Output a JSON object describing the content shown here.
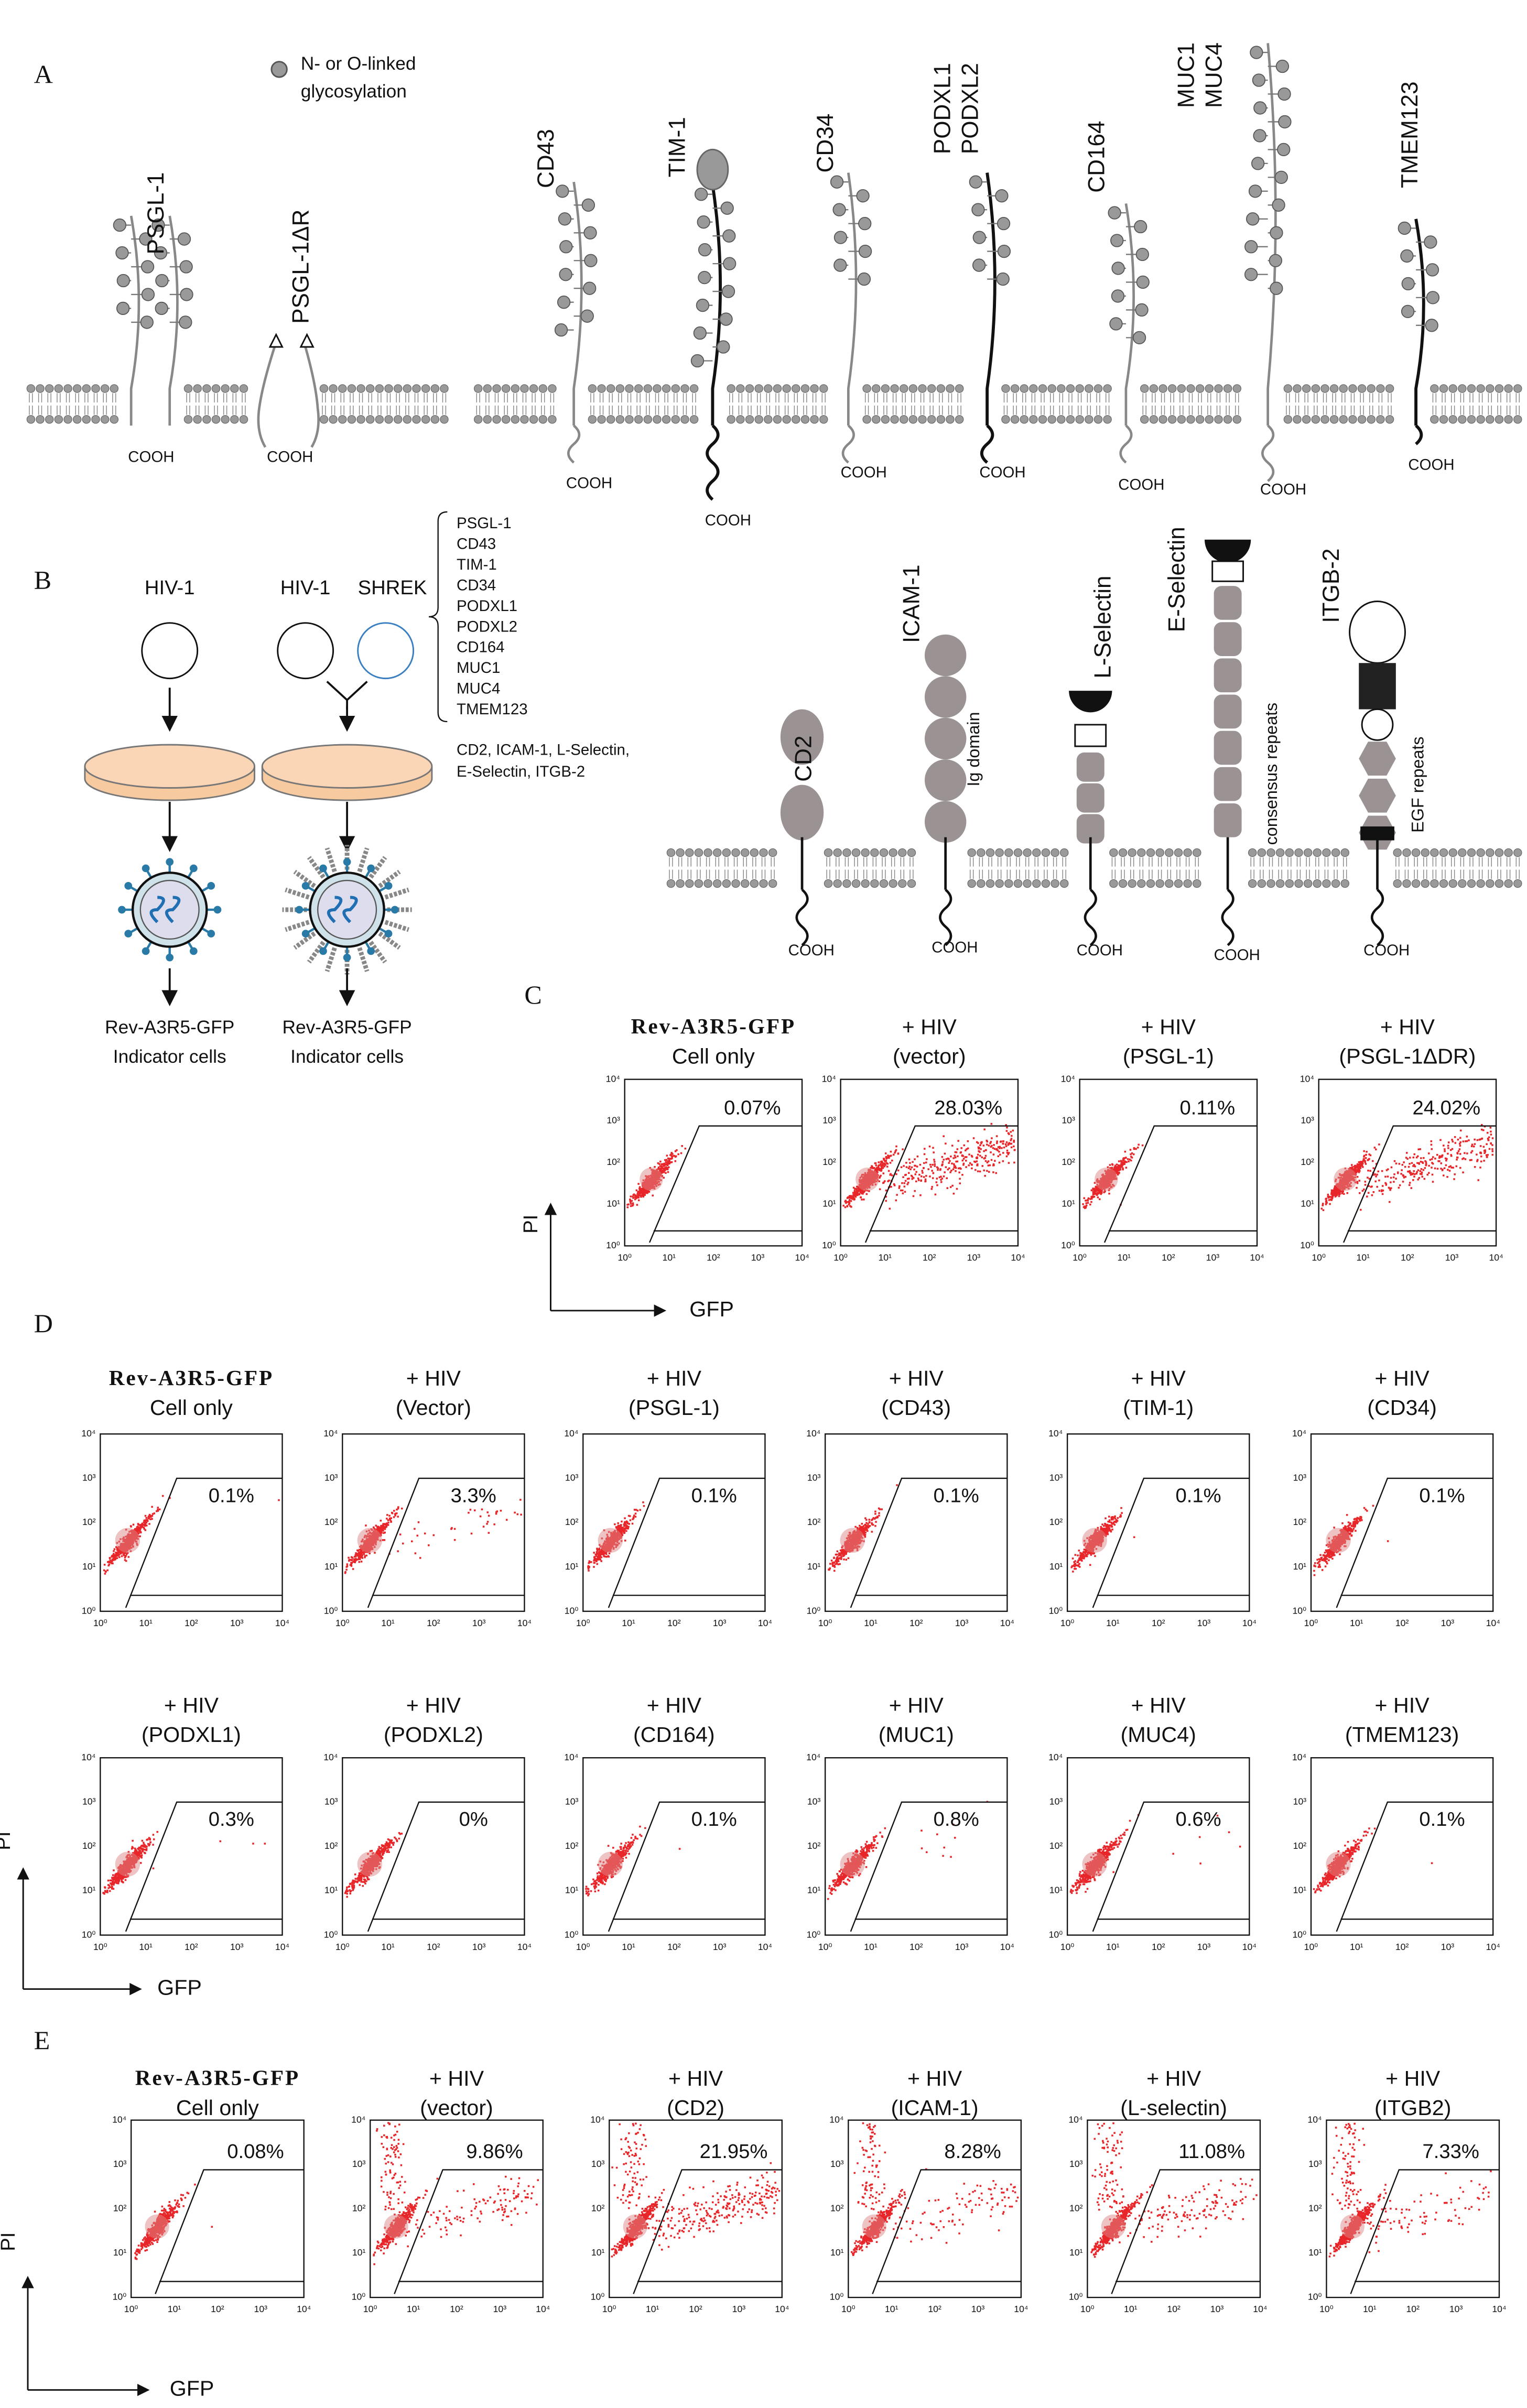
{
  "panel_a": {
    "label": "A",
    "legend": [
      "N- or O-linked",
      "glycosylation"
    ],
    "terminus": "COOH",
    "proteins": [
      [
        "PSGL-1"
      ],
      [
        "PSGL-1ΔR"
      ],
      [
        "CD43"
      ],
      [
        "TIM-1"
      ],
      [
        "CD34"
      ],
      [
        "PODXL1",
        "PODXL2"
      ],
      [
        "CD164"
      ],
      [
        "MUC1",
        "MUC4"
      ],
      [
        "TMEM123"
      ]
    ]
  },
  "panel_b": {
    "label": "B",
    "virus": "HIV-1",
    "shrek": "SHREK",
    "shrek_list": [
      "PSGL-1",
      "CD43",
      "TIM-1",
      "CD34",
      "PODXL1",
      "PODXL2",
      "CD164",
      "MUC1",
      "MUC4",
      "TMEM123"
    ],
    "control_list": [
      "CD2, ICAM-1, L-Selectin,",
      "E-Selectin, ITGB-2"
    ],
    "cells": [
      "Rev-A3R5-GFP",
      "Indicator cells"
    ],
    "proteins": [
      "CD2",
      "ICAM-1",
      "L-Selectin",
      "E-Selectin",
      "ITGB-2"
    ],
    "domains": [
      "Ig domain",
      "consensus repeats",
      "EGF repeats"
    ],
    "terminus": "COOH"
  },
  "axis_ticks": [
    "10⁰",
    "10¹",
    "10²",
    "10³",
    "10⁴"
  ],
  "panel_c": {
    "label": "C",
    "y_axis": "PI",
    "x_axis": "GFP",
    "plots": [
      {
        "title": [
          "Rev-A3R5-GFP",
          "Cell only"
        ],
        "gate": "0.07%"
      },
      {
        "title": [
          "+ HIV",
          "(vector)"
        ],
        "gate": "28.03%"
      },
      {
        "title": [
          "+ HIV",
          "(PSGL-1)"
        ],
        "gate": "0.11%"
      },
      {
        "title": [
          "+ HIV",
          "(PSGL-1ΔDR)"
        ],
        "gate": "24.02%"
      }
    ]
  },
  "panel_d": {
    "label": "D",
    "y_axis": "PI",
    "x_axis": "GFP",
    "plots": [
      {
        "title": [
          "Rev-A3R5-GFP",
          "Cell only"
        ],
        "gate": "0.1%"
      },
      {
        "title": [
          "+ HIV",
          "(Vector)"
        ],
        "gate": "3.3%"
      },
      {
        "title": [
          "+ HIV",
          "(PSGL-1)"
        ],
        "gate": "0.1%"
      },
      {
        "title": [
          "+ HIV",
          "(CD43)"
        ],
        "gate": "0.1%"
      },
      {
        "title": [
          "+ HIV",
          "(TIM-1)"
        ],
        "gate": "0.1%"
      },
      {
        "title": [
          "+ HIV",
          "(CD34)"
        ],
        "gate": "0.1%"
      },
      {
        "title": [
          "+ HIV",
          "(PODXL1)"
        ],
        "gate": "0.3%"
      },
      {
        "title": [
          "+ HIV",
          "(PODXL2)"
        ],
        "gate": "0%"
      },
      {
        "title": [
          "+ HIV",
          "(CD164)"
        ],
        "gate": "0.1%"
      },
      {
        "title": [
          "+ HIV",
          "(MUC1)"
        ],
        "gate": "0.8%"
      },
      {
        "title": [
          "+ HIV",
          "(MUC4)"
        ],
        "gate": "0.6%"
      },
      {
        "title": [
          "+ HIV",
          "(TMEM123)"
        ],
        "gate": "0.1%"
      }
    ]
  },
  "panel_e": {
    "label": "E",
    "y_axis": "PI",
    "x_axis": "GFP",
    "plots": [
      {
        "title": [
          "Rev-A3R5-GFP",
          "Cell only"
        ],
        "gate": "0.08%"
      },
      {
        "title": [
          "+ HIV",
          "(vector)"
        ],
        "gate": "9.86%"
      },
      {
        "title": [
          "+ HIV",
          "(CD2)"
        ],
        "gate": "21.95%"
      },
      {
        "title": [
          "+ HIV",
          "(ICAM-1)"
        ],
        "gate": "8.28%"
      },
      {
        "title": [
          "+ HIV",
          "(L-selectin)"
        ],
        "gate": "11.08%"
      },
      {
        "title": [
          "+ HIV",
          "(ITGB2)"
        ],
        "gate": "7.33%"
      }
    ]
  }
}
